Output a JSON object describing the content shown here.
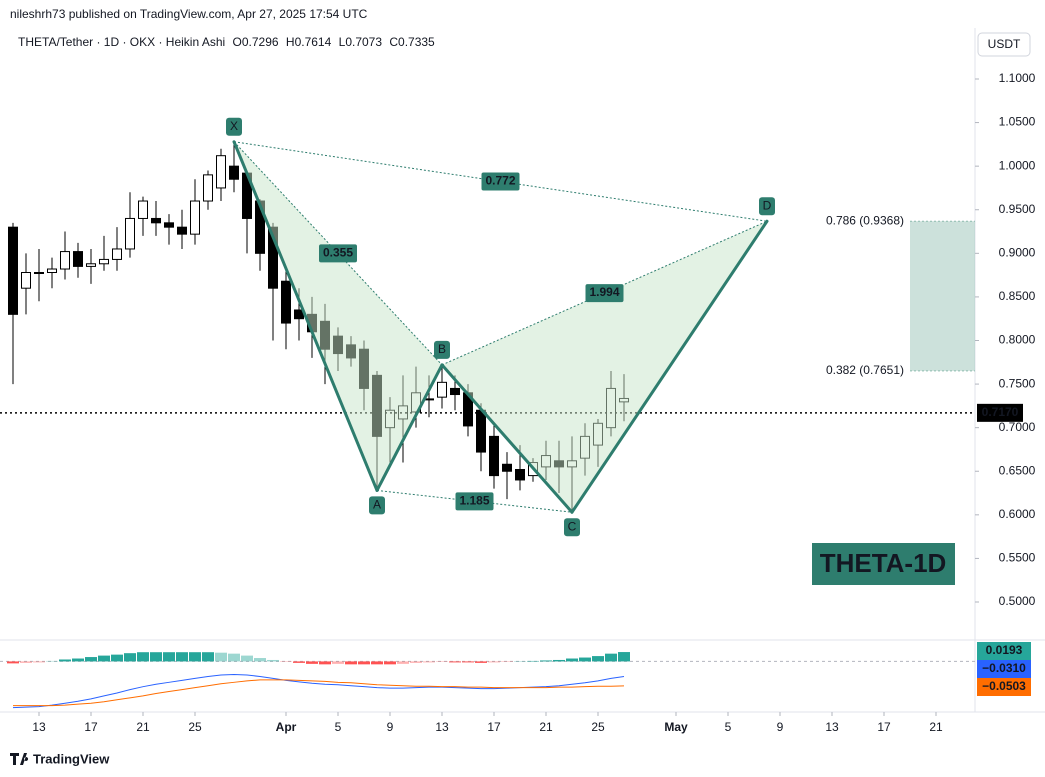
{
  "chart_data": [
    {
      "type": "candlestick",
      "header": "nileshrh73 published on TradingView.com, Apr 27, 2025 17:54 UTC",
      "title": "THETA/Tether · 1D · OKX · Heikin Ashi",
      "ohlc_keys": [
        "O",
        "H",
        "L",
        "C"
      ],
      "currency": "USDT",
      "x": [
        "2025-03-11",
        "2025-03-12",
        "2025-03-13",
        "2025-03-14",
        "2025-03-15",
        "2025-03-16",
        "2025-03-17",
        "2025-03-18",
        "2025-03-19",
        "2025-03-20",
        "2025-03-21",
        "2025-03-22",
        "2025-03-23",
        "2025-03-24",
        "2025-03-25",
        "2025-03-26",
        "2025-03-27",
        "2025-03-28",
        "2025-03-29",
        "2025-03-30",
        "2025-03-31",
        "2025-04-01",
        "2025-04-02",
        "2025-04-03",
        "2025-04-04",
        "2025-04-05",
        "2025-04-06",
        "2025-04-07",
        "2025-04-08",
        "2025-04-09",
        "2025-04-10",
        "2025-04-11",
        "2025-04-12",
        "2025-04-13",
        "2025-04-14",
        "2025-04-15",
        "2025-04-16",
        "2025-04-17",
        "2025-04-18",
        "2025-04-19",
        "2025-04-20",
        "2025-04-21",
        "2025-04-22",
        "2025-04-23",
        "2025-04-24",
        "2025-04-25",
        "2025-04-26",
        "2025-04-27"
      ],
      "open": [
        0.93,
        0.86,
        0.878,
        0.878,
        0.882,
        0.902,
        0.885,
        0.888,
        0.893,
        0.905,
        0.94,
        0.94,
        0.935,
        0.93,
        0.922,
        0.96,
        0.975,
        1.0,
        0.992,
        0.96,
        0.93,
        0.868,
        0.835,
        0.83,
        0.822,
        0.805,
        0.795,
        0.79,
        0.76,
        0.7,
        0.71,
        0.718,
        0.732,
        0.735,
        0.745,
        0.74,
        0.72,
        0.69,
        0.658,
        0.652,
        0.645,
        0.655,
        0.662,
        0.655,
        0.665,
        0.68,
        0.7,
        0.7296
      ],
      "high": [
        0.935,
        0.9,
        0.905,
        0.895,
        0.925,
        0.912,
        0.905,
        0.92,
        0.93,
        0.97,
        0.965,
        0.96,
        0.945,
        0.95,
        0.985,
        0.995,
        1.02,
        1.028,
        0.995,
        0.962,
        0.935,
        0.885,
        0.86,
        0.85,
        0.842,
        0.815,
        0.805,
        0.8,
        0.765,
        0.735,
        0.76,
        0.77,
        0.76,
        0.772,
        0.76,
        0.75,
        0.728,
        0.705,
        0.672,
        0.68,
        0.665,
        0.685,
        0.685,
        0.69,
        0.705,
        0.71,
        0.765,
        0.7614
      ],
      "low": [
        0.75,
        0.83,
        0.845,
        0.86,
        0.87,
        0.872,
        0.865,
        0.88,
        0.88,
        0.895,
        0.92,
        0.92,
        0.91,
        0.905,
        0.91,
        0.95,
        0.96,
        0.97,
        0.9,
        0.88,
        0.8,
        0.79,
        0.8,
        0.78,
        0.75,
        0.765,
        0.77,
        0.72,
        0.628,
        0.66,
        0.66,
        0.7,
        0.712,
        0.722,
        0.72,
        0.69,
        0.65,
        0.63,
        0.618,
        0.628,
        0.638,
        0.64,
        0.625,
        0.603,
        0.645,
        0.655,
        0.69,
        0.7073
      ],
      "close": [
        0.83,
        0.878,
        0.878,
        0.882,
        0.902,
        0.885,
        0.888,
        0.893,
        0.905,
        0.94,
        0.96,
        0.935,
        0.93,
        0.922,
        0.96,
        0.99,
        1.012,
        0.985,
        0.94,
        0.9,
        0.86,
        0.82,
        0.825,
        0.81,
        0.79,
        0.785,
        0.78,
        0.745,
        0.69,
        0.72,
        0.725,
        0.74,
        0.733,
        0.752,
        0.738,
        0.702,
        0.672,
        0.645,
        0.65,
        0.64,
        0.66,
        0.668,
        0.655,
        0.662,
        0.69,
        0.705,
        0.745,
        0.7335
      ],
      "up_color": "#ffffff",
      "down_color": "#000000",
      "xlim": [
        "2025-03-10",
        "2025-05-24"
      ],
      "xticks": [
        {
          "value": "2025-03-13",
          "label": "13"
        },
        {
          "value": "2025-03-17",
          "label": "17"
        },
        {
          "value": "2025-03-21",
          "label": "21"
        },
        {
          "value": "2025-03-25",
          "label": "25"
        },
        {
          "value": "2025-04-01",
          "label": "Apr"
        },
        {
          "value": "2025-04-05",
          "label": "5"
        },
        {
          "value": "2025-04-09",
          "label": "9"
        },
        {
          "value": "2025-04-13",
          "label": "13"
        },
        {
          "value": "2025-04-17",
          "label": "17"
        },
        {
          "value": "2025-04-21",
          "label": "21"
        },
        {
          "value": "2025-04-25",
          "label": "25"
        },
        {
          "value": "2025-05-01",
          "label": "May"
        },
        {
          "value": "2025-05-05",
          "label": "5"
        },
        {
          "value": "2025-05-09",
          "label": "9"
        },
        {
          "value": "2025-05-13",
          "label": "13"
        },
        {
          "value": "2025-05-17",
          "label": "17"
        },
        {
          "value": "2025-05-21",
          "label": "21"
        }
      ],
      "ylim": [
        0.4587,
        1.1562
      ],
      "yticks": [
        {
          "value": 1.1,
          "label": "1.1000"
        },
        {
          "value": 1.05,
          "label": "1.0500"
        },
        {
          "value": 1.0,
          "label": "1.0000"
        },
        {
          "value": 0.95,
          "label": "0.9500"
        },
        {
          "value": 0.9,
          "label": "0.9000"
        },
        {
          "value": 0.85,
          "label": "0.8500"
        },
        {
          "value": 0.8,
          "label": "0.8000"
        },
        {
          "value": 0.75,
          "label": "0.7500"
        },
        {
          "value": 0.7,
          "label": "0.7000"
        },
        {
          "value": 0.65,
          "label": "0.6500"
        },
        {
          "value": 0.6,
          "label": "0.6000"
        },
        {
          "value": 0.55,
          "label": "0.5500"
        },
        {
          "value": 0.5,
          "label": "0.5000"
        }
      ],
      "last_price": {
        "value": 0.717,
        "label": "0.7170"
      },
      "pattern": {
        "color": "#2e7d6e",
        "fill": "#c8e6c9",
        "points": [
          {
            "label": "X",
            "x": "2025-03-28",
            "y": 1.028
          },
          {
            "label": "A",
            "x": "2025-04-08",
            "y": 0.628
          },
          {
            "label": "B",
            "x": "2025-04-13",
            "y": 0.772
          },
          {
            "label": "C",
            "x": "2025-04-23",
            "y": 0.603
          },
          {
            "label": "D",
            "x": "2025-05-08",
            "y": 0.9368
          }
        ],
        "ratios": [
          0.355,
          1.185,
          1.994,
          0.772
        ]
      },
      "fib_zone": {
        "color": "#8fbcb0",
        "x": [
          "2025-05-19",
          "2025-05-24"
        ],
        "levels": [
          {
            "value": 0.9368,
            "label": "0.786 (0.9368)"
          },
          {
            "value": 0.7651,
            "label": "0.382 (0.7651)"
          }
        ]
      },
      "watermark": "THETA-1D",
      "footer": "TradingView"
    },
    {
      "type": "macd",
      "ylim": [
        -0.1,
        0.04
      ],
      "series": [
        {
          "name": "Histogram",
          "color": "#26a69a",
          "negative_color": "#ff5252",
          "last_label": "0.0193",
          "values": [
            -0.004,
            -0.003,
            -0.002,
            0.001,
            0.004,
            0.006,
            0.009,
            0.012,
            0.014,
            0.017,
            0.019,
            0.019,
            0.019,
            0.019,
            0.019,
            0.019,
            0.018,
            0.016,
            0.012,
            0.007,
            0.003,
            -0.001,
            -0.003,
            -0.005,
            -0.006,
            -0.005,
            -0.006,
            -0.006,
            -0.006,
            -0.006,
            -0.005,
            -0.003,
            -0.002,
            -0.001,
            -0.002,
            -0.002,
            -0.003,
            -0.002,
            -0.001,
            0,
            0.001,
            0.002,
            0.003,
            0.006,
            0.008,
            0.011,
            0.016,
            0.0193
          ]
        },
        {
          "name": "MACD",
          "color": "#2962ff",
          "last_label": "−0.0310",
          "values": [
            -0.095,
            -0.094,
            -0.093,
            -0.09,
            -0.086,
            -0.082,
            -0.077,
            -0.071,
            -0.065,
            -0.058,
            -0.052,
            -0.047,
            -0.043,
            -0.039,
            -0.035,
            -0.031,
            -0.028,
            -0.027,
            -0.028,
            -0.031,
            -0.035,
            -0.039,
            -0.042,
            -0.045,
            -0.047,
            -0.048,
            -0.05,
            -0.052,
            -0.054,
            -0.055,
            -0.055,
            -0.054,
            -0.053,
            -0.053,
            -0.054,
            -0.055,
            -0.056,
            -0.056,
            -0.055,
            -0.054,
            -0.053,
            -0.052,
            -0.05,
            -0.047,
            -0.044,
            -0.04,
            -0.035,
            -0.031
          ]
        },
        {
          "name": "Signal",
          "color": "#ff6d00",
          "last_label": "−0.0503",
          "values": [
            -0.091,
            -0.091,
            -0.091,
            -0.091,
            -0.09,
            -0.088,
            -0.086,
            -0.083,
            -0.079,
            -0.075,
            -0.071,
            -0.066,
            -0.062,
            -0.058,
            -0.054,
            -0.05,
            -0.046,
            -0.043,
            -0.04,
            -0.038,
            -0.038,
            -0.038,
            -0.039,
            -0.04,
            -0.041,
            -0.043,
            -0.044,
            -0.046,
            -0.048,
            -0.049,
            -0.05,
            -0.051,
            -0.051,
            -0.052,
            -0.052,
            -0.053,
            -0.053,
            -0.054,
            -0.054,
            -0.054,
            -0.054,
            -0.054,
            -0.053,
            -0.053,
            -0.052,
            -0.051,
            -0.051,
            -0.0503
          ]
        }
      ]
    }
  ]
}
